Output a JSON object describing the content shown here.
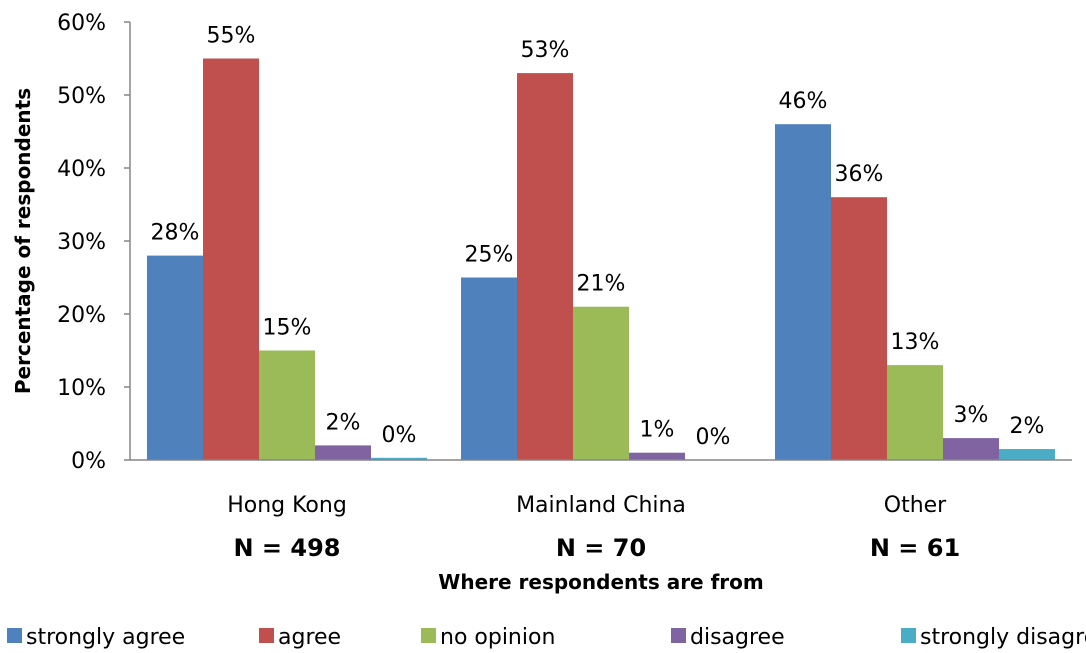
{
  "chart_data": {
    "type": "bar",
    "ylabel": "Percentage of respondents",
    "xlabel": "Where respondents are from",
    "categories": [
      "Hong Kong",
      "Mainland China",
      "Other"
    ],
    "category_counts": [
      "N = 498",
      "N = 70",
      "N = 61"
    ],
    "ylim": [
      0,
      60
    ],
    "yticks": [
      "0%",
      "10%",
      "20%",
      "30%",
      "40%",
      "50%",
      "60%"
    ],
    "grid": false,
    "legend_position": "bottom",
    "series": [
      {
        "name": "strongly agree",
        "color": "#4F81BD",
        "values": [
          28,
          25,
          46
        ],
        "labels": [
          "28%",
          "25%",
          "46%"
        ]
      },
      {
        "name": "agree",
        "color": "#C0504D",
        "values": [
          55,
          53,
          36
        ],
        "labels": [
          "55%",
          "53%",
          "36%"
        ]
      },
      {
        "name": "no opinion",
        "color": "#9BBB59",
        "values": [
          15,
          21,
          13
        ],
        "labels": [
          "15%",
          "21%",
          "13%"
        ]
      },
      {
        "name": "disagree",
        "color": "#8064A2",
        "values": [
          2,
          1,
          3
        ],
        "labels": [
          "2%",
          "1%",
          "3%"
        ]
      },
      {
        "name": "strongly disagree",
        "color": "#4BACC6",
        "values": [
          0.3,
          0,
          1.5
        ],
        "labels": [
          "0%",
          "0%",
          "2%"
        ]
      }
    ]
  }
}
